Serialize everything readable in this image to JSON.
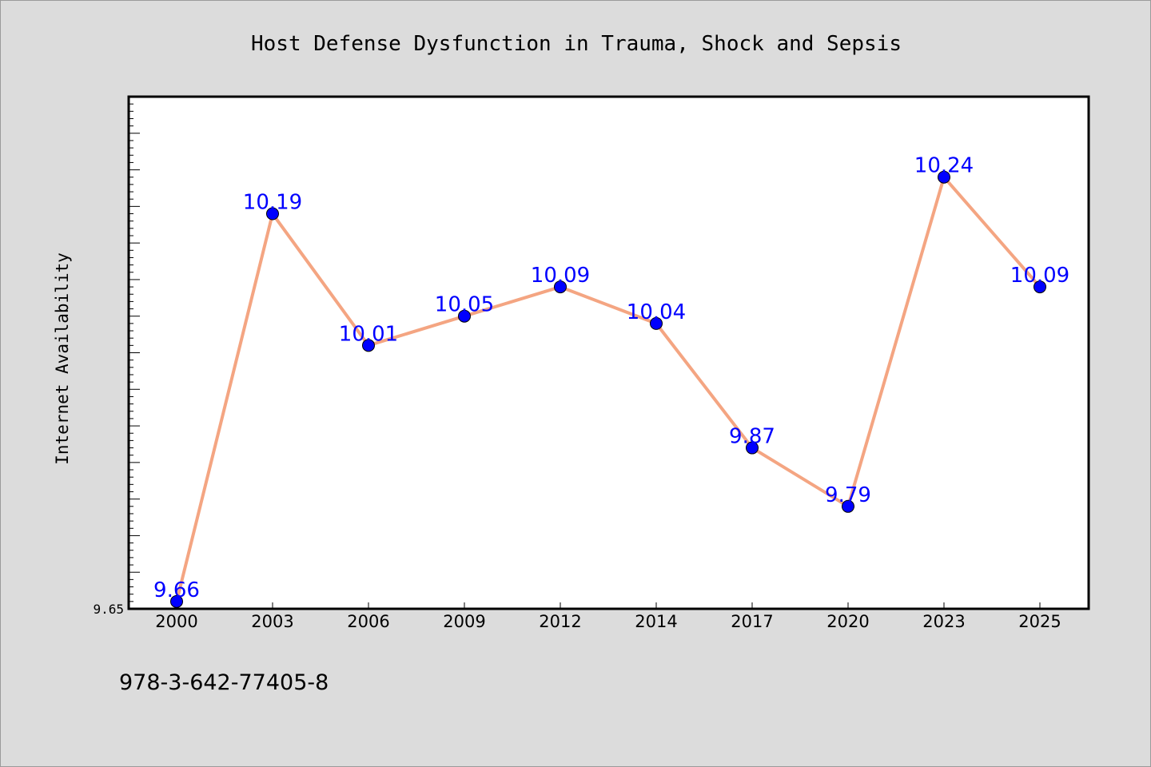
{
  "colors": {
    "figure_background": "#dcdcdc",
    "plot_background": "#ffffff",
    "line": "#f4a582",
    "marker": "#0000ff",
    "data_label": "#0000ff",
    "axes": "#000000"
  },
  "footer": {
    "isbn": "978-3-642-77405-8"
  },
  "chart_data": {
    "type": "line",
    "title": "Host Defense Dysfunction in Trauma, Shock and Sepsis",
    "xlabel": "",
    "ylabel": "Internet Availability",
    "categories": [
      "2000",
      "2003",
      "2006",
      "2009",
      "2012",
      "2014",
      "2017",
      "2020",
      "2023",
      "2025"
    ],
    "series": [
      {
        "values": [
          9.66,
          10.19,
          10.01,
          10.05,
          10.09,
          10.04,
          9.87,
          9.79,
          10.24,
          10.09
        ],
        "data_labels": [
          "9.66",
          "10.19",
          "10.01",
          "10.05",
          "10.09",
          "10.04",
          "9.87",
          "9.79",
          "10.24",
          "10.09"
        ]
      }
    ],
    "ylim": [
      9.65,
      10.35
    ],
    "ytick_labels": [
      "9.65"
    ],
    "y_minor_tick_step": 0.05,
    "grid": false,
    "legend": "none"
  }
}
